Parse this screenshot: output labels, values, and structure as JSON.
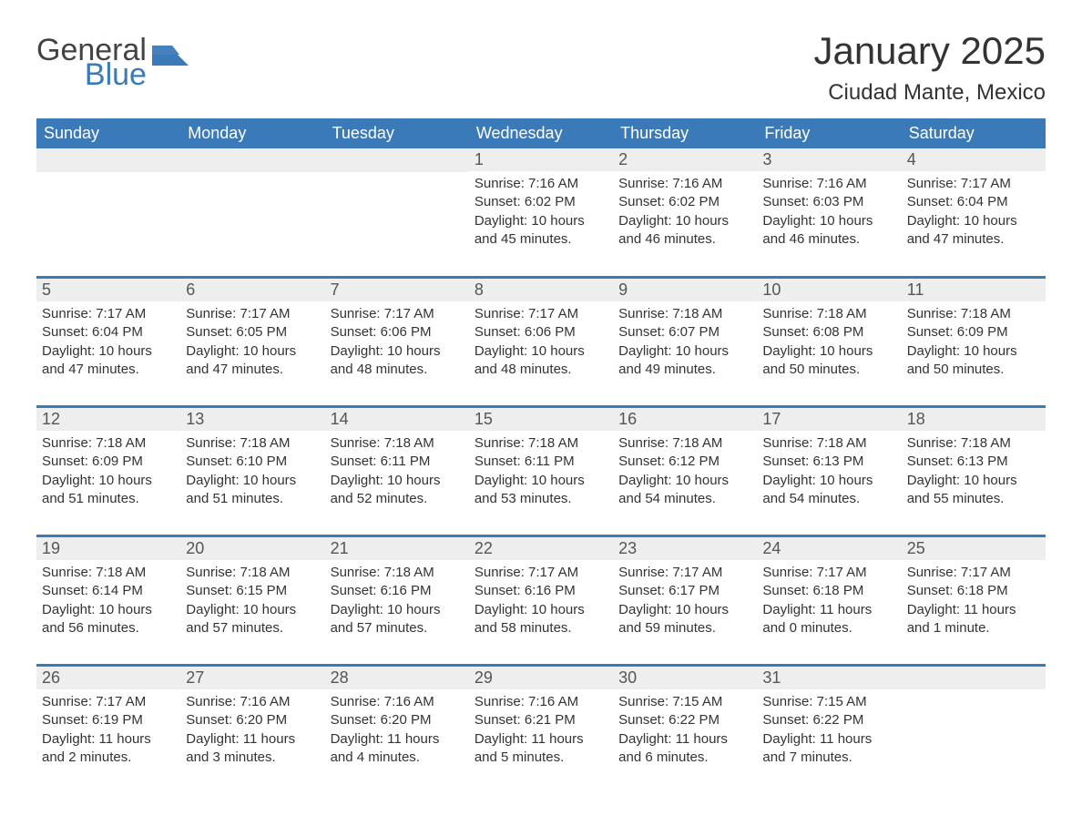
{
  "logo": {
    "word1": "General",
    "word2": "Blue"
  },
  "title": "January 2025",
  "location": "Ciudad Mante, Mexico",
  "colors": {
    "header_bg": "#3b7ab8",
    "header_text": "#ffffff",
    "daynum_bg": "#eeeeee",
    "daynum_text": "#555555",
    "body_text": "#333333",
    "rule": "#3b7ab8",
    "logo_gray": "#434343",
    "logo_blue": "#3b7ab8"
  },
  "fonts": {
    "title_pt": 42,
    "location_pt": 24,
    "dayheader_pt": 18,
    "daynum_pt": 18,
    "body_pt": 15
  },
  "layout": {
    "columns": 7,
    "rows": 5,
    "aspect": "1188x918"
  },
  "day_names": [
    "Sunday",
    "Monday",
    "Tuesday",
    "Wednesday",
    "Thursday",
    "Friday",
    "Saturday"
  ],
  "weeks": [
    [
      null,
      null,
      null,
      {
        "n": "1",
        "sunrise": "Sunrise: 7:16 AM",
        "sunset": "Sunset: 6:02 PM",
        "dl1": "Daylight: 10 hours",
        "dl2": "and 45 minutes."
      },
      {
        "n": "2",
        "sunrise": "Sunrise: 7:16 AM",
        "sunset": "Sunset: 6:02 PM",
        "dl1": "Daylight: 10 hours",
        "dl2": "and 46 minutes."
      },
      {
        "n": "3",
        "sunrise": "Sunrise: 7:16 AM",
        "sunset": "Sunset: 6:03 PM",
        "dl1": "Daylight: 10 hours",
        "dl2": "and 46 minutes."
      },
      {
        "n": "4",
        "sunrise": "Sunrise: 7:17 AM",
        "sunset": "Sunset: 6:04 PM",
        "dl1": "Daylight: 10 hours",
        "dl2": "and 47 minutes."
      }
    ],
    [
      {
        "n": "5",
        "sunrise": "Sunrise: 7:17 AM",
        "sunset": "Sunset: 6:04 PM",
        "dl1": "Daylight: 10 hours",
        "dl2": "and 47 minutes."
      },
      {
        "n": "6",
        "sunrise": "Sunrise: 7:17 AM",
        "sunset": "Sunset: 6:05 PM",
        "dl1": "Daylight: 10 hours",
        "dl2": "and 47 minutes."
      },
      {
        "n": "7",
        "sunrise": "Sunrise: 7:17 AM",
        "sunset": "Sunset: 6:06 PM",
        "dl1": "Daylight: 10 hours",
        "dl2": "and 48 minutes."
      },
      {
        "n": "8",
        "sunrise": "Sunrise: 7:17 AM",
        "sunset": "Sunset: 6:06 PM",
        "dl1": "Daylight: 10 hours",
        "dl2": "and 48 minutes."
      },
      {
        "n": "9",
        "sunrise": "Sunrise: 7:18 AM",
        "sunset": "Sunset: 6:07 PM",
        "dl1": "Daylight: 10 hours",
        "dl2": "and 49 minutes."
      },
      {
        "n": "10",
        "sunrise": "Sunrise: 7:18 AM",
        "sunset": "Sunset: 6:08 PM",
        "dl1": "Daylight: 10 hours",
        "dl2": "and 50 minutes."
      },
      {
        "n": "11",
        "sunrise": "Sunrise: 7:18 AM",
        "sunset": "Sunset: 6:09 PM",
        "dl1": "Daylight: 10 hours",
        "dl2": "and 50 minutes."
      }
    ],
    [
      {
        "n": "12",
        "sunrise": "Sunrise: 7:18 AM",
        "sunset": "Sunset: 6:09 PM",
        "dl1": "Daylight: 10 hours",
        "dl2": "and 51 minutes."
      },
      {
        "n": "13",
        "sunrise": "Sunrise: 7:18 AM",
        "sunset": "Sunset: 6:10 PM",
        "dl1": "Daylight: 10 hours",
        "dl2": "and 51 minutes."
      },
      {
        "n": "14",
        "sunrise": "Sunrise: 7:18 AM",
        "sunset": "Sunset: 6:11 PM",
        "dl1": "Daylight: 10 hours",
        "dl2": "and 52 minutes."
      },
      {
        "n": "15",
        "sunrise": "Sunrise: 7:18 AM",
        "sunset": "Sunset: 6:11 PM",
        "dl1": "Daylight: 10 hours",
        "dl2": "and 53 minutes."
      },
      {
        "n": "16",
        "sunrise": "Sunrise: 7:18 AM",
        "sunset": "Sunset: 6:12 PM",
        "dl1": "Daylight: 10 hours",
        "dl2": "and 54 minutes."
      },
      {
        "n": "17",
        "sunrise": "Sunrise: 7:18 AM",
        "sunset": "Sunset: 6:13 PM",
        "dl1": "Daylight: 10 hours",
        "dl2": "and 54 minutes."
      },
      {
        "n": "18",
        "sunrise": "Sunrise: 7:18 AM",
        "sunset": "Sunset: 6:13 PM",
        "dl1": "Daylight: 10 hours",
        "dl2": "and 55 minutes."
      }
    ],
    [
      {
        "n": "19",
        "sunrise": "Sunrise: 7:18 AM",
        "sunset": "Sunset: 6:14 PM",
        "dl1": "Daylight: 10 hours",
        "dl2": "and 56 minutes."
      },
      {
        "n": "20",
        "sunrise": "Sunrise: 7:18 AM",
        "sunset": "Sunset: 6:15 PM",
        "dl1": "Daylight: 10 hours",
        "dl2": "and 57 minutes."
      },
      {
        "n": "21",
        "sunrise": "Sunrise: 7:18 AM",
        "sunset": "Sunset: 6:16 PM",
        "dl1": "Daylight: 10 hours",
        "dl2": "and 57 minutes."
      },
      {
        "n": "22",
        "sunrise": "Sunrise: 7:17 AM",
        "sunset": "Sunset: 6:16 PM",
        "dl1": "Daylight: 10 hours",
        "dl2": "and 58 minutes."
      },
      {
        "n": "23",
        "sunrise": "Sunrise: 7:17 AM",
        "sunset": "Sunset: 6:17 PM",
        "dl1": "Daylight: 10 hours",
        "dl2": "and 59 minutes."
      },
      {
        "n": "24",
        "sunrise": "Sunrise: 7:17 AM",
        "sunset": "Sunset: 6:18 PM",
        "dl1": "Daylight: 11 hours",
        "dl2": "and 0 minutes."
      },
      {
        "n": "25",
        "sunrise": "Sunrise: 7:17 AM",
        "sunset": "Sunset: 6:18 PM",
        "dl1": "Daylight: 11 hours",
        "dl2": "and 1 minute."
      }
    ],
    [
      {
        "n": "26",
        "sunrise": "Sunrise: 7:17 AM",
        "sunset": "Sunset: 6:19 PM",
        "dl1": "Daylight: 11 hours",
        "dl2": "and 2 minutes."
      },
      {
        "n": "27",
        "sunrise": "Sunrise: 7:16 AM",
        "sunset": "Sunset: 6:20 PM",
        "dl1": "Daylight: 11 hours",
        "dl2": "and 3 minutes."
      },
      {
        "n": "28",
        "sunrise": "Sunrise: 7:16 AM",
        "sunset": "Sunset: 6:20 PM",
        "dl1": "Daylight: 11 hours",
        "dl2": "and 4 minutes."
      },
      {
        "n": "29",
        "sunrise": "Sunrise: 7:16 AM",
        "sunset": "Sunset: 6:21 PM",
        "dl1": "Daylight: 11 hours",
        "dl2": "and 5 minutes."
      },
      {
        "n": "30",
        "sunrise": "Sunrise: 7:15 AM",
        "sunset": "Sunset: 6:22 PM",
        "dl1": "Daylight: 11 hours",
        "dl2": "and 6 minutes."
      },
      {
        "n": "31",
        "sunrise": "Sunrise: 7:15 AM",
        "sunset": "Sunset: 6:22 PM",
        "dl1": "Daylight: 11 hours",
        "dl2": "and 7 minutes."
      },
      null
    ]
  ]
}
